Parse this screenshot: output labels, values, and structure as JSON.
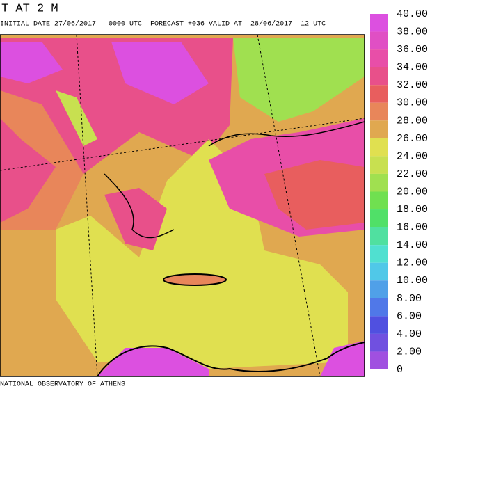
{
  "header": {
    "title": "T AT 2 M",
    "subtitle": "INITIAL DATE 27/06/2017   0000 UTC  FORECAST +036 VALID AT  28/06/2017  12 UTC"
  },
  "colorbar": {
    "ticks": [
      {
        "value": 40,
        "label": "40.00"
      },
      {
        "value": 38,
        "label": "38.00"
      },
      {
        "value": 36,
        "label": "36.00"
      },
      {
        "value": 34,
        "label": "34.00"
      },
      {
        "value": 32,
        "label": "32.00"
      },
      {
        "value": 30,
        "label": "30.00"
      },
      {
        "value": 28,
        "label": "28.00"
      },
      {
        "value": 26,
        "label": "26.00"
      },
      {
        "value": 24,
        "label": "24.00"
      },
      {
        "value": 22,
        "label": "22.00"
      },
      {
        "value": 20,
        "label": "20.00"
      },
      {
        "value": 18,
        "label": "18.00"
      },
      {
        "value": 16,
        "label": "16.00"
      },
      {
        "value": 14,
        "label": "14.00"
      },
      {
        "value": 12,
        "label": "12.00"
      },
      {
        "value": 10,
        "label": "10.00"
      },
      {
        "value": 8,
        "label": "8.00"
      },
      {
        "value": 6,
        "label": "6.00"
      },
      {
        "value": 4,
        "label": "4.00"
      },
      {
        "value": 2,
        "label": "2.00"
      },
      0
    ],
    "colors": [
      "#dc50e0",
      "#e04fc4",
      "#e84ea8",
      "#e8508a",
      "#e85e5e",
      "#e8865a",
      "#e0a850",
      "#e0e050",
      "#c8e050",
      "#a0e050",
      "#70e050",
      "#50e068",
      "#50e0a0",
      "#50e0d0",
      "#50c8e8",
      "#50a0e8",
      "#5078e8",
      "#5050e0",
      "#7050e0",
      "#a050e0"
    ]
  },
  "footer": "NATIONAL OBSERVATORY OF ATHENS"
}
